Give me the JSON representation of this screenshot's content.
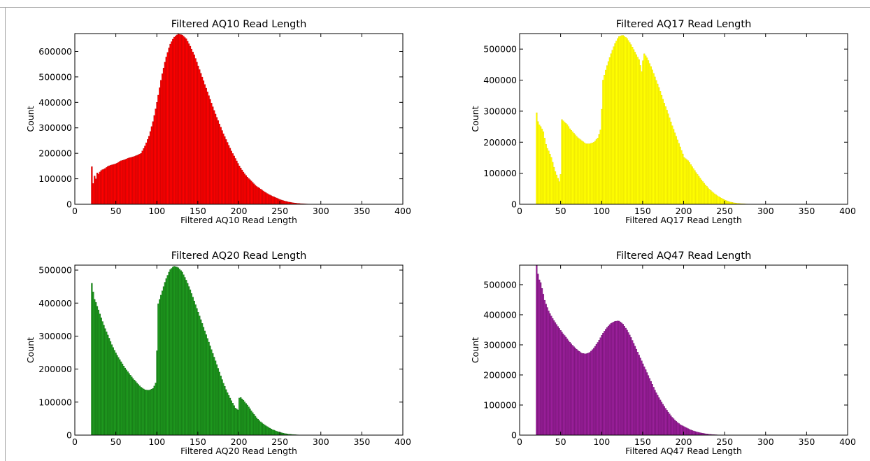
{
  "chart_data": [
    {
      "type": "bar",
      "title": "Filtered AQ10 Read Length",
      "xlabel": "Filtered AQ10 Read Length",
      "ylabel": "Count",
      "color": "#ff0000",
      "edgecolor": "#a00000",
      "xlim": [
        0,
        400
      ],
      "ylim": [
        0,
        670000
      ],
      "xticks": [
        0,
        50,
        100,
        150,
        200,
        250,
        300,
        350,
        400
      ],
      "yticks": [
        0,
        100000,
        200000,
        300000,
        400000,
        500000,
        600000
      ],
      "points": [
        [
          20,
          148000
        ],
        [
          21,
          85000
        ],
        [
          22,
          80000
        ],
        [
          24,
          130000
        ],
        [
          25,
          95000
        ],
        [
          26,
          125000
        ],
        [
          28,
          118000
        ],
        [
          30,
          128000
        ],
        [
          32,
          135000
        ],
        [
          35,
          138000
        ],
        [
          38,
          145000
        ],
        [
          40,
          150000
        ],
        [
          45,
          155000
        ],
        [
          50,
          160000
        ],
        [
          55,
          170000
        ],
        [
          60,
          175000
        ],
        [
          65,
          182000
        ],
        [
          70,
          186000
        ],
        [
          75,
          192000
        ],
        [
          80,
          200000
        ],
        [
          85,
          230000
        ],
        [
          90,
          270000
        ],
        [
          95,
          330000
        ],
        [
          100,
          410000
        ],
        [
          105,
          500000
        ],
        [
          110,
          570000
        ],
        [
          115,
          625000
        ],
        [
          120,
          655000
        ],
        [
          125,
          668000
        ],
        [
          130,
          665000
        ],
        [
          135,
          650000
        ],
        [
          140,
          620000
        ],
        [
          145,
          585000
        ],
        [
          150,
          540000
        ],
        [
          155,
          495000
        ],
        [
          160,
          450000
        ],
        [
          165,
          405000
        ],
        [
          170,
          360000
        ],
        [
          175,
          320000
        ],
        [
          180,
          280000
        ],
        [
          185,
          245000
        ],
        [
          190,
          210000
        ],
        [
          195,
          180000
        ],
        [
          200,
          150000
        ],
        [
          205,
          125000
        ],
        [
          210,
          105000
        ],
        [
          215,
          90000
        ],
        [
          220,
          72000
        ],
        [
          225,
          62000
        ],
        [
          230,
          50000
        ],
        [
          235,
          40000
        ],
        [
          240,
          32000
        ],
        [
          245,
          25000
        ],
        [
          250,
          18000
        ],
        [
          255,
          13000
        ],
        [
          260,
          9000
        ],
        [
          265,
          6000
        ],
        [
          270,
          4000
        ],
        [
          275,
          2500
        ],
        [
          280,
          1500
        ],
        [
          285,
          800
        ],
        [
          290,
          400
        ],
        [
          295,
          200
        ],
        [
          300,
          100
        ],
        [
          305,
          0
        ]
      ]
    },
    {
      "type": "bar",
      "title": "Filtered AQ17 Read Length",
      "xlabel": "Filtered AQ17 Read Length",
      "ylabel": "Count",
      "color": "#ffff00",
      "edgecolor": "#e0d000",
      "xlim": [
        0,
        400
      ],
      "ylim": [
        0,
        550000
      ],
      "xticks": [
        0,
        50,
        100,
        150,
        200,
        250,
        300,
        350,
        400
      ],
      "yticks": [
        0,
        100000,
        200000,
        300000,
        400000,
        500000
      ],
      "points": [
        [
          20,
          295000
        ],
        [
          22,
          260000
        ],
        [
          25,
          250000
        ],
        [
          28,
          235000
        ],
        [
          30,
          210000
        ],
        [
          32,
          185000
        ],
        [
          35,
          170000
        ],
        [
          38,
          150000
        ],
        [
          40,
          130000
        ],
        [
          42,
          110000
        ],
        [
          45,
          90000
        ],
        [
          48,
          70000
        ],
        [
          49,
          60000
        ],
        [
          50,
          275000
        ],
        [
          52,
          270000
        ],
        [
          55,
          262000
        ],
        [
          58,
          255000
        ],
        [
          60,
          245000
        ],
        [
          65,
          230000
        ],
        [
          70,
          215000
        ],
        [
          75,
          205000
        ],
        [
          80,
          195000
        ],
        [
          85,
          195000
        ],
        [
          90,
          200000
        ],
        [
          95,
          215000
        ],
        [
          99,
          250000
        ],
        [
          100,
          390000
        ],
        [
          105,
          440000
        ],
        [
          110,
          480000
        ],
        [
          115,
          515000
        ],
        [
          120,
          540000
        ],
        [
          125,
          545000
        ],
        [
          130,
          535000
        ],
        [
          135,
          515000
        ],
        [
          140,
          490000
        ],
        [
          145,
          465000
        ],
        [
          149,
          415000
        ],
        [
          150,
          490000
        ],
        [
          155,
          470000
        ],
        [
          160,
          440000
        ],
        [
          165,
          405000
        ],
        [
          170,
          370000
        ],
        [
          175,
          330000
        ],
        [
          180,
          295000
        ],
        [
          185,
          255000
        ],
        [
          190,
          220000
        ],
        [
          195,
          185000
        ],
        [
          200,
          150000
        ],
        [
          205,
          140000
        ],
        [
          210,
          120000
        ],
        [
          215,
          100000
        ],
        [
          220,
          82000
        ],
        [
          225,
          65000
        ],
        [
          230,
          50000
        ],
        [
          235,
          38000
        ],
        [
          240,
          28000
        ],
        [
          245,
          20000
        ],
        [
          250,
          13000
        ],
        [
          255,
          8000
        ],
        [
          260,
          5000
        ],
        [
          265,
          3000
        ],
        [
          270,
          1800
        ],
        [
          275,
          1000
        ],
        [
          280,
          500
        ],
        [
          285,
          200
        ],
        [
          290,
          0
        ]
      ]
    },
    {
      "type": "bar",
      "title": "Filtered AQ20 Read Length",
      "xlabel": "Filtered AQ20 Read Length",
      "ylabel": "Count",
      "color": "#1f9a1f",
      "edgecolor": "#0b5d0b",
      "xlim": [
        0,
        400
      ],
      "ylim": [
        0,
        515000
      ],
      "xticks": [
        0,
        50,
        100,
        150,
        200,
        250,
        300,
        350,
        400
      ],
      "yticks": [
        0,
        100000,
        200000,
        300000,
        400000,
        500000
      ],
      "points": [
        [
          20,
          460000
        ],
        [
          21,
          440000
        ],
        [
          22,
          430000
        ],
        [
          23,
          410000
        ],
        [
          24,
          415000
        ],
        [
          25,
          400000
        ],
        [
          28,
          380000
        ],
        [
          30,
          365000
        ],
        [
          35,
          330000
        ],
        [
          40,
          300000
        ],
        [
          45,
          270000
        ],
        [
          50,
          245000
        ],
        [
          55,
          225000
        ],
        [
          60,
          205000
        ],
        [
          65,
          188000
        ],
        [
          70,
          172000
        ],
        [
          75,
          158000
        ],
        [
          80,
          145000
        ],
        [
          85,
          137000
        ],
        [
          90,
          136000
        ],
        [
          95,
          142000
        ],
        [
          99,
          165000
        ],
        [
          100,
          390000
        ],
        [
          105,
          430000
        ],
        [
          110,
          470000
        ],
        [
          115,
          500000
        ],
        [
          120,
          512000
        ],
        [
          125,
          508000
        ],
        [
          130,
          495000
        ],
        [
          135,
          470000
        ],
        [
          140,
          440000
        ],
        [
          145,
          405000
        ],
        [
          150,
          370000
        ],
        [
          155,
          335000
        ],
        [
          160,
          300000
        ],
        [
          165,
          265000
        ],
        [
          170,
          230000
        ],
        [
          175,
          195000
        ],
        [
          180,
          160000
        ],
        [
          185,
          130000
        ],
        [
          190,
          105000
        ],
        [
          195,
          82000
        ],
        [
          199,
          75000
        ],
        [
          200,
          118000
        ],
        [
          205,
          105000
        ],
        [
          210,
          90000
        ],
        [
          215,
          72000
        ],
        [
          220,
          55000
        ],
        [
          225,
          42000
        ],
        [
          230,
          32000
        ],
        [
          235,
          24000
        ],
        [
          240,
          17000
        ],
        [
          245,
          12000
        ],
        [
          250,
          8000
        ],
        [
          255,
          5000
        ],
        [
          260,
          3000
        ],
        [
          265,
          1800
        ],
        [
          270,
          1000
        ],
        [
          275,
          400
        ],
        [
          280,
          0
        ]
      ]
    },
    {
      "type": "bar",
      "title": "Filtered AQ47 Read Length",
      "xlabel": "Filtered AQ47 Read Length",
      "ylabel": "Count",
      "color": "#9b1f9b",
      "edgecolor": "#5e0a5e",
      "xlim": [
        0,
        400
      ],
      "ylim": [
        0,
        565000
      ],
      "xticks": [
        0,
        50,
        100,
        150,
        200,
        250,
        300,
        350,
        400
      ],
      "yticks": [
        0,
        100000,
        200000,
        300000,
        400000,
        500000
      ],
      "points": [
        [
          20,
          570000
        ],
        [
          21,
          545000
        ],
        [
          22,
          530000
        ],
        [
          23,
          515000
        ],
        [
          24,
          520000
        ],
        [
          25,
          505000
        ],
        [
          28,
          470000
        ],
        [
          30,
          445000
        ],
        [
          35,
          410000
        ],
        [
          40,
          385000
        ],
        [
          45,
          365000
        ],
        [
          50,
          345000
        ],
        [
          55,
          328000
        ],
        [
          60,
          310000
        ],
        [
          65,
          295000
        ],
        [
          70,
          282000
        ],
        [
          75,
          272000
        ],
        [
          80,
          270000
        ],
        [
          85,
          275000
        ],
        [
          90,
          290000
        ],
        [
          95,
          310000
        ],
        [
          100,
          335000
        ],
        [
          105,
          355000
        ],
        [
          110,
          370000
        ],
        [
          115,
          378000
        ],
        [
          120,
          380000
        ],
        [
          125,
          370000
        ],
        [
          130,
          350000
        ],
        [
          135,
          325000
        ],
        [
          140,
          295000
        ],
        [
          145,
          265000
        ],
        [
          150,
          235000
        ],
        [
          155,
          205000
        ],
        [
          160,
          175000
        ],
        [
          165,
          145000
        ],
        [
          170,
          120000
        ],
        [
          175,
          98000
        ],
        [
          180,
          78000
        ],
        [
          185,
          60000
        ],
        [
          190,
          46000
        ],
        [
          195,
          35000
        ],
        [
          200,
          28000
        ],
        [
          205,
          21000
        ],
        [
          210,
          15000
        ],
        [
          215,
          11000
        ],
        [
          220,
          7500
        ],
        [
          225,
          5000
        ],
        [
          230,
          3000
        ],
        [
          235,
          1800
        ],
        [
          240,
          1000
        ],
        [
          245,
          400
        ],
        [
          250,
          0
        ]
      ]
    }
  ]
}
